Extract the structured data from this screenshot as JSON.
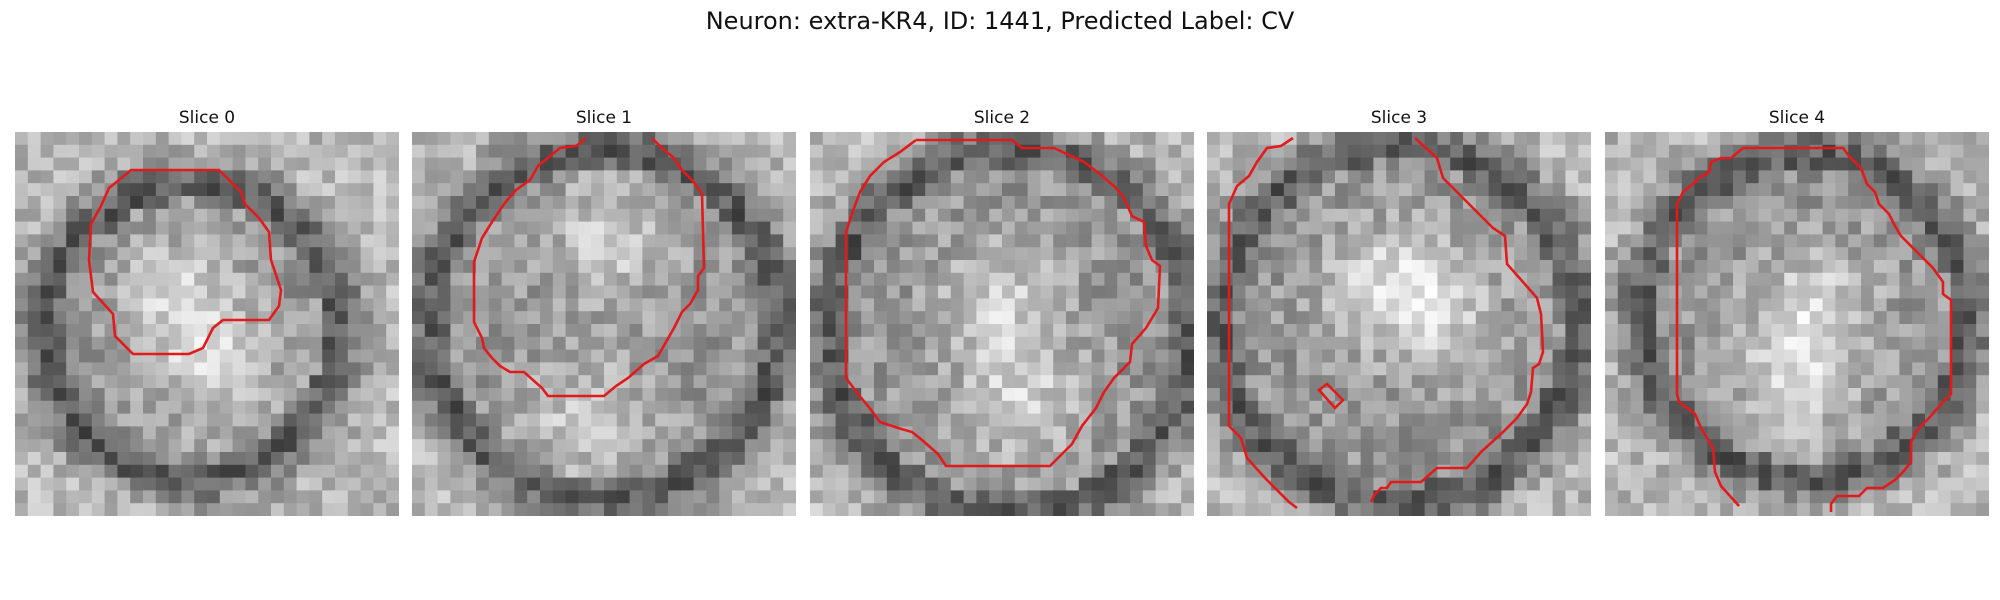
{
  "title": "Neuron: extra-KR4, ID: 1441, Predicted Label: CV",
  "colors": {
    "contour": "#e31a1c",
    "background": "#ffffff"
  },
  "panels": [
    {
      "label": "Slice 0"
    },
    {
      "label": "Slice 1"
    },
    {
      "label": "Slice 2"
    },
    {
      "label": "Slice 3"
    },
    {
      "label": "Slice 4"
    }
  ]
}
